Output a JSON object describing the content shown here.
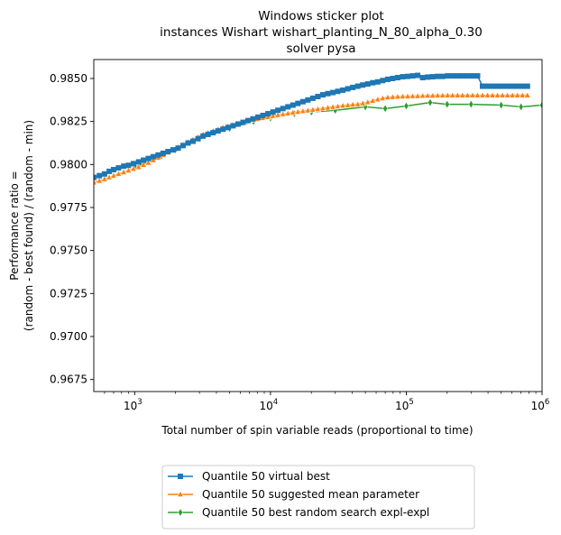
{
  "chart_data": {
    "type": "line",
    "title": [
      "Windows sticker plot",
      "instances Wishart wishart_planting_N_80_alpha_0.30",
      "solver pysa"
    ],
    "xlabel": "Total number of spin variable reads (proportional to time)",
    "ylabel": [
      "Performance ratio =",
      "(random - best found) / (random - min)"
    ],
    "xscale": "log",
    "xlim": [
      500,
      1000000
    ],
    "ylim": [
      0.9668,
      0.9861
    ],
    "grid": false,
    "legend_position": "below-center",
    "x_tick_labels": [
      {
        "base": "10",
        "exp": "3",
        "value": 1000
      },
      {
        "base": "10",
        "exp": "4",
        "value": 10000
      },
      {
        "base": "10",
        "exp": "5",
        "value": 100000
      },
      {
        "base": "10",
        "exp": "6",
        "value": 1000000
      }
    ],
    "y_ticks": [
      0.9675,
      0.97,
      0.9725,
      0.975,
      0.9775,
      0.98,
      0.9825,
      0.985
    ],
    "y_tick_labels": [
      "0.9675",
      "0.9700",
      "0.9725",
      "0.9750",
      "0.9775",
      "0.9800",
      "0.9825",
      "0.9850"
    ],
    "series": [
      {
        "name": "Quantile 50 virtual best",
        "color": "#1f77b4",
        "marker": "square",
        "x": [
          500,
          550,
          600,
          650,
          700,
          760,
          830,
          900,
          980,
          1070,
          1160,
          1260,
          1370,
          1490,
          1620,
          1760,
          1920,
          2090,
          2270,
          2470,
          2690,
          2930,
          3190,
          3470,
          3780,
          4110,
          4470,
          4870,
          5300,
          5770,
          6280,
          6830,
          7430,
          8090,
          8800,
          9580,
          10430,
          11350,
          12350,
          13440,
          14630,
          15920,
          17330,
          18860,
          20520,
          22330,
          24300,
          26450,
          28790,
          31330,
          34100,
          37110,
          40380,
          43950,
          47830,
          52050,
          56650,
          61650,
          67090,
          73010,
          79460,
          86480,
          94110,
          102400,
          111500,
          121300,
          132000,
          143700,
          156400,
          170200,
          185200,
          201500,
          219300,
          238700,
          259800,
          282700,
          307700,
          334900,
          364400,
          396600,
          431600,
          469700,
          511200,
          556300,
          605400,
          658900,
          717000,
          780300
        ],
        "y": [
          0.97925,
          0.97935,
          0.97945,
          0.9796,
          0.9797,
          0.9798,
          0.9799,
          0.97995,
          0.98005,
          0.98015,
          0.98025,
          0.98035,
          0.98045,
          0.98055,
          0.98065,
          0.98075,
          0.98085,
          0.98095,
          0.9811,
          0.98125,
          0.98135,
          0.9815,
          0.98165,
          0.98175,
          0.98185,
          0.98195,
          0.98205,
          0.98215,
          0.98225,
          0.98235,
          0.98245,
          0.98255,
          0.98265,
          0.98275,
          0.98285,
          0.98295,
          0.98305,
          0.98315,
          0.98325,
          0.98335,
          0.98345,
          0.98355,
          0.98365,
          0.98375,
          0.98385,
          0.98395,
          0.98405,
          0.98412,
          0.98418,
          0.98425,
          0.98432,
          0.9844,
          0.98448,
          0.98455,
          0.98462,
          0.98468,
          0.98475,
          0.9848,
          0.98488,
          0.98495,
          0.985,
          0.98505,
          0.9851,
          0.98512,
          0.98515,
          0.98518,
          0.98505,
          0.98508,
          0.9851,
          0.98512,
          0.98512,
          0.98515,
          0.98515,
          0.98515,
          0.98515,
          0.98515,
          0.98515,
          0.98515,
          0.98455,
          0.98455,
          0.98455,
          0.98455,
          0.98455,
          0.98455,
          0.98455,
          0.98455,
          0.98455,
          0.98455
        ]
      },
      {
        "name": "Quantile 50 suggested mean parameter",
        "color": "#ff7f0e",
        "marker": "triangle",
        "x": [
          500,
          550,
          600,
          650,
          700,
          760,
          830,
          900,
          980,
          1070,
          1160,
          1260,
          1370,
          1490,
          1620,
          1760,
          1920,
          2090,
          2270,
          2470,
          2690,
          2930,
          3190,
          3470,
          3780,
          4110,
          4470,
          4870,
          5300,
          5770,
          6280,
          6830,
          7430,
          8090,
          8800,
          9580,
          10430,
          11350,
          12350,
          13440,
          14630,
          15920,
          17330,
          18860,
          20520,
          22330,
          24300,
          26450,
          28790,
          31330,
          34100,
          37110,
          40380,
          43950,
          47830,
          52050,
          56650,
          61650,
          67090,
          73010,
          79460,
          86480,
          94110,
          102400,
          111500,
          121300,
          132000,
          143700,
          156400,
          170200,
          185200,
          201500,
          219300,
          238700,
          259800,
          282700,
          307700,
          334900,
          364400,
          396600,
          431600,
          469700,
          511200,
          556300,
          605400,
          658900,
          717000,
          780300
        ],
        "y": [
          0.97895,
          0.97905,
          0.97915,
          0.97925,
          0.97935,
          0.97945,
          0.97955,
          0.97965,
          0.97975,
          0.97985,
          0.97998,
          0.9801,
          0.98025,
          0.9804,
          0.98055,
          0.9807,
          0.98085,
          0.981,
          0.98115,
          0.9813,
          0.98145,
          0.9816,
          0.98175,
          0.98185,
          0.98195,
          0.98205,
          0.98215,
          0.98222,
          0.9823,
          0.98238,
          0.98245,
          0.98252,
          0.98258,
          0.98265,
          0.9827,
          0.98276,
          0.98282,
          0.98287,
          0.98292,
          0.98297,
          0.98302,
          0.98306,
          0.9831,
          0.98314,
          0.98318,
          0.98322,
          0.98326,
          0.9833,
          0.98334,
          0.98338,
          0.98342,
          0.98345,
          0.98348,
          0.9835,
          0.98355,
          0.98362,
          0.9837,
          0.98378,
          0.98385,
          0.9839,
          0.98392,
          0.98394,
          0.98395,
          0.98396,
          0.98397,
          0.98398,
          0.98399,
          0.984,
          0.984,
          0.98401,
          0.98401,
          0.98402,
          0.98402,
          0.98402,
          0.98402,
          0.98402,
          0.98402,
          0.98402,
          0.98402,
          0.98402,
          0.98402,
          0.98402,
          0.98402,
          0.98402,
          0.98402,
          0.98402,
          0.98402,
          0.98402
        ]
      },
      {
        "name": "Quantile 50  best random search expl-expl",
        "color": "#2ca02c",
        "marker": "diamond",
        "x": [
          1000,
          1580,
          2000,
          3000,
          5000,
          7500,
          10000,
          15000,
          20000,
          30000,
          50000,
          70000,
          100000,
          150000,
          200000,
          300000,
          500000,
          700000,
          1000000
        ],
        "y": [
          0.97985,
          0.9805,
          0.98085,
          0.9815,
          0.9821,
          0.9825,
          0.9827,
          0.98295,
          0.98305,
          0.98315,
          0.98335,
          0.98325,
          0.9834,
          0.9836,
          0.9835,
          0.9835,
          0.98345,
          0.98335,
          0.98345
        ]
      }
    ]
  }
}
